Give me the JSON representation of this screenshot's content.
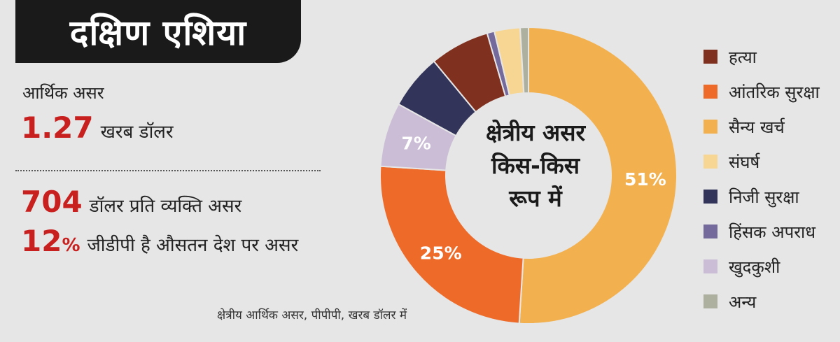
{
  "title": "दक्षिण एशिया",
  "economic_impact": {
    "label": "आर्थिक असर",
    "total_value": "1.27",
    "total_unit": "खरब डॉलर",
    "per_capita_value": "704",
    "per_capita_text": "डॉलर प्रति व्यक्ति असर",
    "gdp_value": "12",
    "gdp_percent_sign": "%",
    "gdp_text": "जीडीपी है औसतन देश पर असर"
  },
  "footnote": "क्षेत्रीय आर्थिक असर, पीपीपी, खरब डॉलर में",
  "chart_center": {
    "line1": "क्षेत्रीय असर",
    "line2": "किस-किस",
    "line3": "रूप में"
  },
  "chart_data": {
    "type": "pie",
    "donut": true,
    "start_angle_deg": 0,
    "slices": [
      {
        "name": "सैन्य खर्च",
        "value": 51,
        "color": "#f2b04e",
        "label": "51%"
      },
      {
        "name": "आंतरिक सुरक्षा",
        "value": 25,
        "color": "#ee6a29",
        "label": "25%"
      },
      {
        "name": "खुदकुशी",
        "value": 7,
        "color": "#cbbdd6",
        "label": "7%"
      },
      {
        "name": "निजी सुरक्षा",
        "value": 6,
        "color": "#33345a",
        "label": ""
      },
      {
        "name": "हत्या",
        "value": 6.5,
        "color": "#80301f",
        "label": ""
      },
      {
        "name": "हिंसक अपराध",
        "value": 0.8,
        "color": "#756a9c",
        "label": ""
      },
      {
        "name": "संघर्ष",
        "value": 2.8,
        "color": "#f7d693",
        "label": ""
      },
      {
        "name": "अन्य",
        "value": 0.9,
        "color": "#adb09f",
        "label": ""
      }
    ],
    "legend": [
      {
        "label": "हत्या",
        "color": "#80301f"
      },
      {
        "label": "आंतरिक सुरक्षा",
        "color": "#ee6a29"
      },
      {
        "label": "सैन्य खर्च",
        "color": "#f2b04e"
      },
      {
        "label": "संघर्ष",
        "color": "#f7d693"
      },
      {
        "label": "निजी सुरक्षा",
        "color": "#33345a"
      },
      {
        "label": "हिंसक अपराध",
        "color": "#756a9c"
      },
      {
        "label": "खुदकुशी",
        "color": "#cbbdd6"
      },
      {
        "label": "अन्य",
        "color": "#adb09f"
      }
    ],
    "legend_position": "right"
  }
}
